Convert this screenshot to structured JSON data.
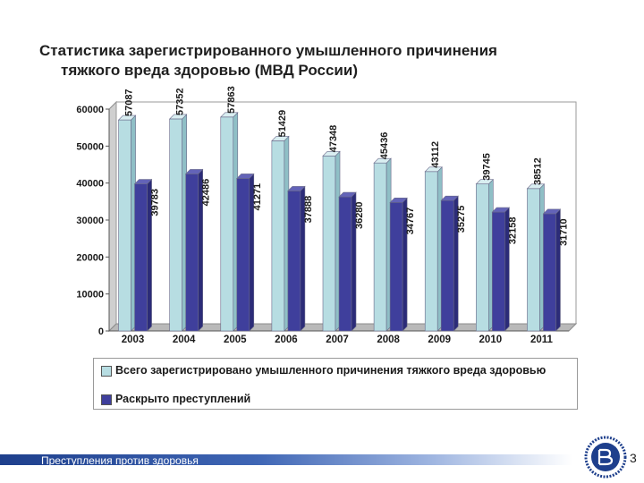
{
  "slide": {
    "title_line1": "Статистика зарегистрированного умышленного причинения",
    "title_line2": "тяжкого вреда здоровью (МВД России)",
    "footer_text": "Преступления против здоровья",
    "page_number": "3"
  },
  "chart_data": {
    "type": "bar",
    "title": "Статистика зарегистрированного умышленного причинения тяжкого вреда здоровью (МВД России)",
    "xlabel": "",
    "ylabel": "",
    "categories": [
      "2003",
      "2004",
      "2005",
      "2006",
      "2007",
      "2008",
      "2009",
      "2010",
      "2011"
    ],
    "series": [
      {
        "name": "Всего зарегистрировано умышленного причинения тяжкого вреда здоровью",
        "values": [
          57087,
          57352,
          57863,
          51429,
          47348,
          45436,
          43112,
          39745,
          38512
        ],
        "labels": [
          "57087",
          "57352",
          "57863",
          "51429",
          "47348",
          "45436",
          "43112",
          "39745",
          "38512"
        ],
        "color": "#b7dde2"
      },
      {
        "name": "Раскрыто преступлений",
        "values": [
          39783,
          42486,
          41271,
          37888,
          36280,
          34767,
          35275,
          32158,
          31710
        ],
        "labels": [
          "39783",
          "42486",
          "41271",
          "37888",
          "36280",
          "34767",
          "35275",
          "32158",
          "31710"
        ],
        "color": "#3f3f9c"
      }
    ],
    "yticks": [
      "0",
      "10000",
      "20000",
      "30000",
      "40000",
      "50000",
      "60000"
    ],
    "ylim": [
      0,
      60000
    ],
    "grid": false,
    "legend_position": "bottom"
  }
}
